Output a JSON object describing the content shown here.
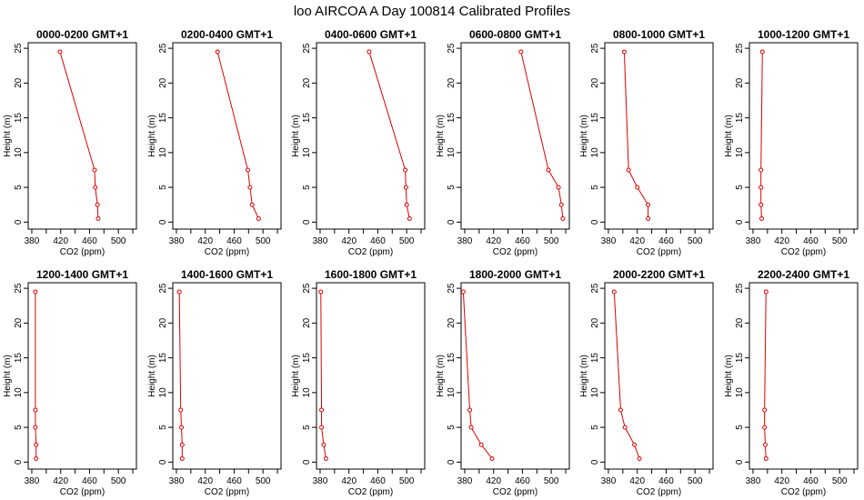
{
  "chart_data": {
    "type": "line",
    "title": "loo AIRCOA A  Day 100814  Calibrated Profiles",
    "xlabel": "CO2 (ppm)",
    "ylabel": "Height (m)",
    "xlim": [
      375,
      525
    ],
    "ylim": [
      -1,
      25.8
    ],
    "xticks": [
      380,
      420,
      460,
      500
    ],
    "xticks_unlabeled": [
      400,
      440,
      480,
      520
    ],
    "yticks": [
      0,
      5,
      10,
      15,
      20,
      25
    ],
    "heights": [
      0.5,
      2.5,
      5,
      7.5,
      24.5
    ],
    "line_color": "#dd0000",
    "grid": false,
    "panels": [
      {
        "title": "0000-0200 GMT+1",
        "co2": [
          472,
          471,
          468,
          467,
          419
        ]
      },
      {
        "title": "0200-0400 GMT+1",
        "co2": [
          494,
          485,
          482,
          479,
          437
        ]
      },
      {
        "title": "0400-0600 GMT+1",
        "co2": [
          504,
          500,
          499,
          498,
          448
        ]
      },
      {
        "title": "0600-0800 GMT+1",
        "co2": [
          516,
          514,
          510,
          496,
          458
        ]
      },
      {
        "title": "0800-1000 GMT+1",
        "co2": [
          435,
          435,
          420,
          408,
          402
        ]
      },
      {
        "title": "1000-1200 GMT+1",
        "co2": [
          392,
          391,
          391,
          391,
          393
        ]
      },
      {
        "title": "1200-1400 GMT+1",
        "co2": [
          386,
          386,
          385,
          385,
          385
        ]
      },
      {
        "title": "1400-1600 GMT+1",
        "co2": [
          388,
          388,
          387,
          386,
          384
        ]
      },
      {
        "title": "1600-1800 GMT+1",
        "co2": [
          388,
          385,
          382,
          382,
          381
        ]
      },
      {
        "title": "1800-2000 GMT+1",
        "co2": [
          418,
          403,
          389,
          387,
          378
        ]
      },
      {
        "title": "2000-2200 GMT+1",
        "co2": [
          423,
          416,
          403,
          397,
          388
        ]
      },
      {
        "title": "2200-2400 GMT+1",
        "co2": [
          398,
          397,
          396,
          396,
          398
        ]
      }
    ]
  }
}
